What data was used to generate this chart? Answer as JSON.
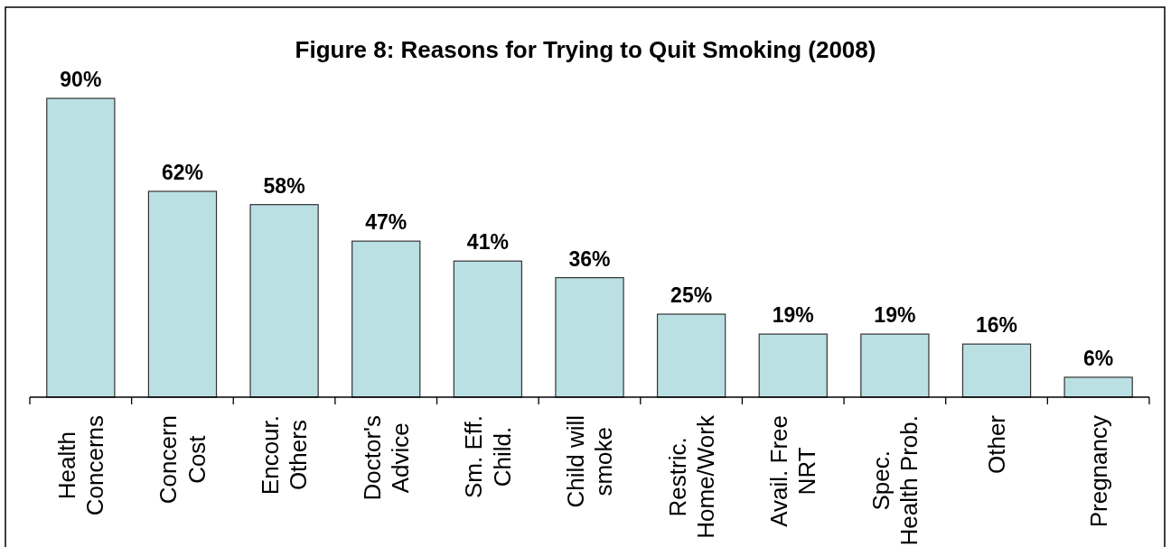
{
  "chart_data": {
    "type": "bar",
    "title": "Figure 8: Reasons for Trying to Quit Smoking (2008)",
    "categories": [
      "Health\nConcerns",
      "Concern\nCost",
      "Encour.\nOthers",
      "Doctor's\nAdvice",
      "Sm. Eff.\nChild.",
      "Child will\nsmoke",
      "Restric.\nHome/Work",
      "Avail. Free\nNRT",
      "Spec.\nHealth Prob.",
      "Other",
      "Pregnancy"
    ],
    "values": [
      90,
      62,
      58,
      47,
      41,
      36,
      25,
      19,
      19,
      16,
      6
    ],
    "value_labels": [
      "90%",
      "62%",
      "58%",
      "47%",
      "41%",
      "36%",
      "25%",
      "19%",
      "19%",
      "16%",
      "6%"
    ],
    "color": "#bae0e3"
  }
}
